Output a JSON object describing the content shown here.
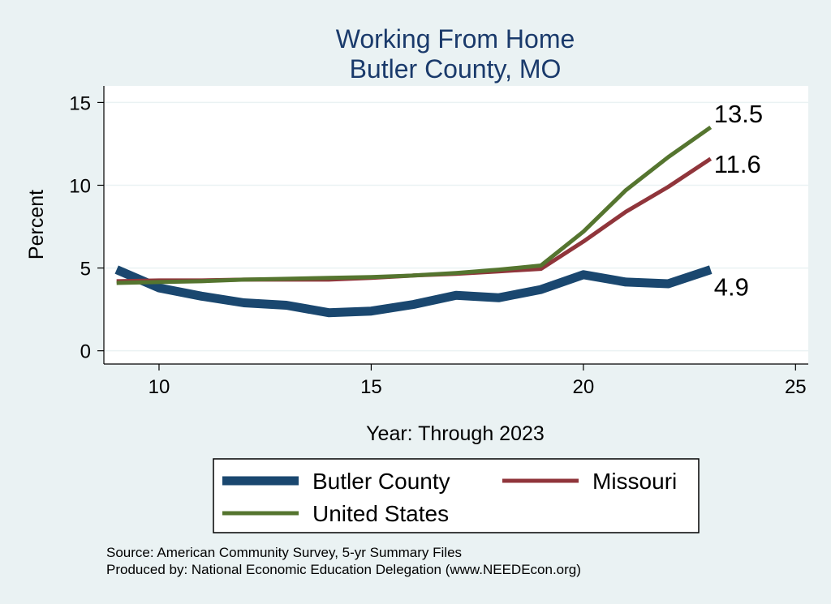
{
  "chart_data": {
    "type": "line",
    "title": [
      "Working From Home",
      "Butler County, MO"
    ],
    "xlabel": "Year: Through 2023",
    "ylabel": "Percent",
    "xlim": [
      8.7,
      25.3
    ],
    "ylim": [
      -0.8,
      16
    ],
    "xticks": [
      10,
      15,
      20,
      25
    ],
    "yticks": [
      0,
      5,
      10,
      15
    ],
    "grid": true,
    "legend_position": "bottom",
    "x": [
      9,
      10,
      11,
      12,
      13,
      14,
      15,
      16,
      17,
      18,
      19,
      20,
      21,
      22,
      23
    ],
    "series": [
      {
        "name": "Butler County",
        "color": "#1a476f",
        "values": [
          4.9,
          3.8,
          3.3,
          2.9,
          2.75,
          2.3,
          2.4,
          2.8,
          3.35,
          3.2,
          3.7,
          4.6,
          4.15,
          4.05,
          4.9
        ],
        "end_label": "4.9"
      },
      {
        "name": "Missouri",
        "color": "#90353b",
        "values": [
          4.2,
          4.25,
          4.25,
          4.3,
          4.3,
          4.3,
          4.4,
          4.55,
          4.65,
          4.8,
          4.95,
          6.6,
          8.4,
          9.9,
          11.6
        ],
        "end_label": "11.6"
      },
      {
        "name": "United States",
        "color": "#55752f",
        "values": [
          4.1,
          4.15,
          4.2,
          4.3,
          4.35,
          4.4,
          4.45,
          4.55,
          4.7,
          4.9,
          5.15,
          7.2,
          9.7,
          11.7,
          13.5
        ],
        "end_label": "13.5"
      }
    ]
  },
  "notes": {
    "source": "Source: American Community Survey, 5-yr Summary Files",
    "produced": "Produced by: National Economic Education Delegation (www.NEEDEcon.org)"
  }
}
